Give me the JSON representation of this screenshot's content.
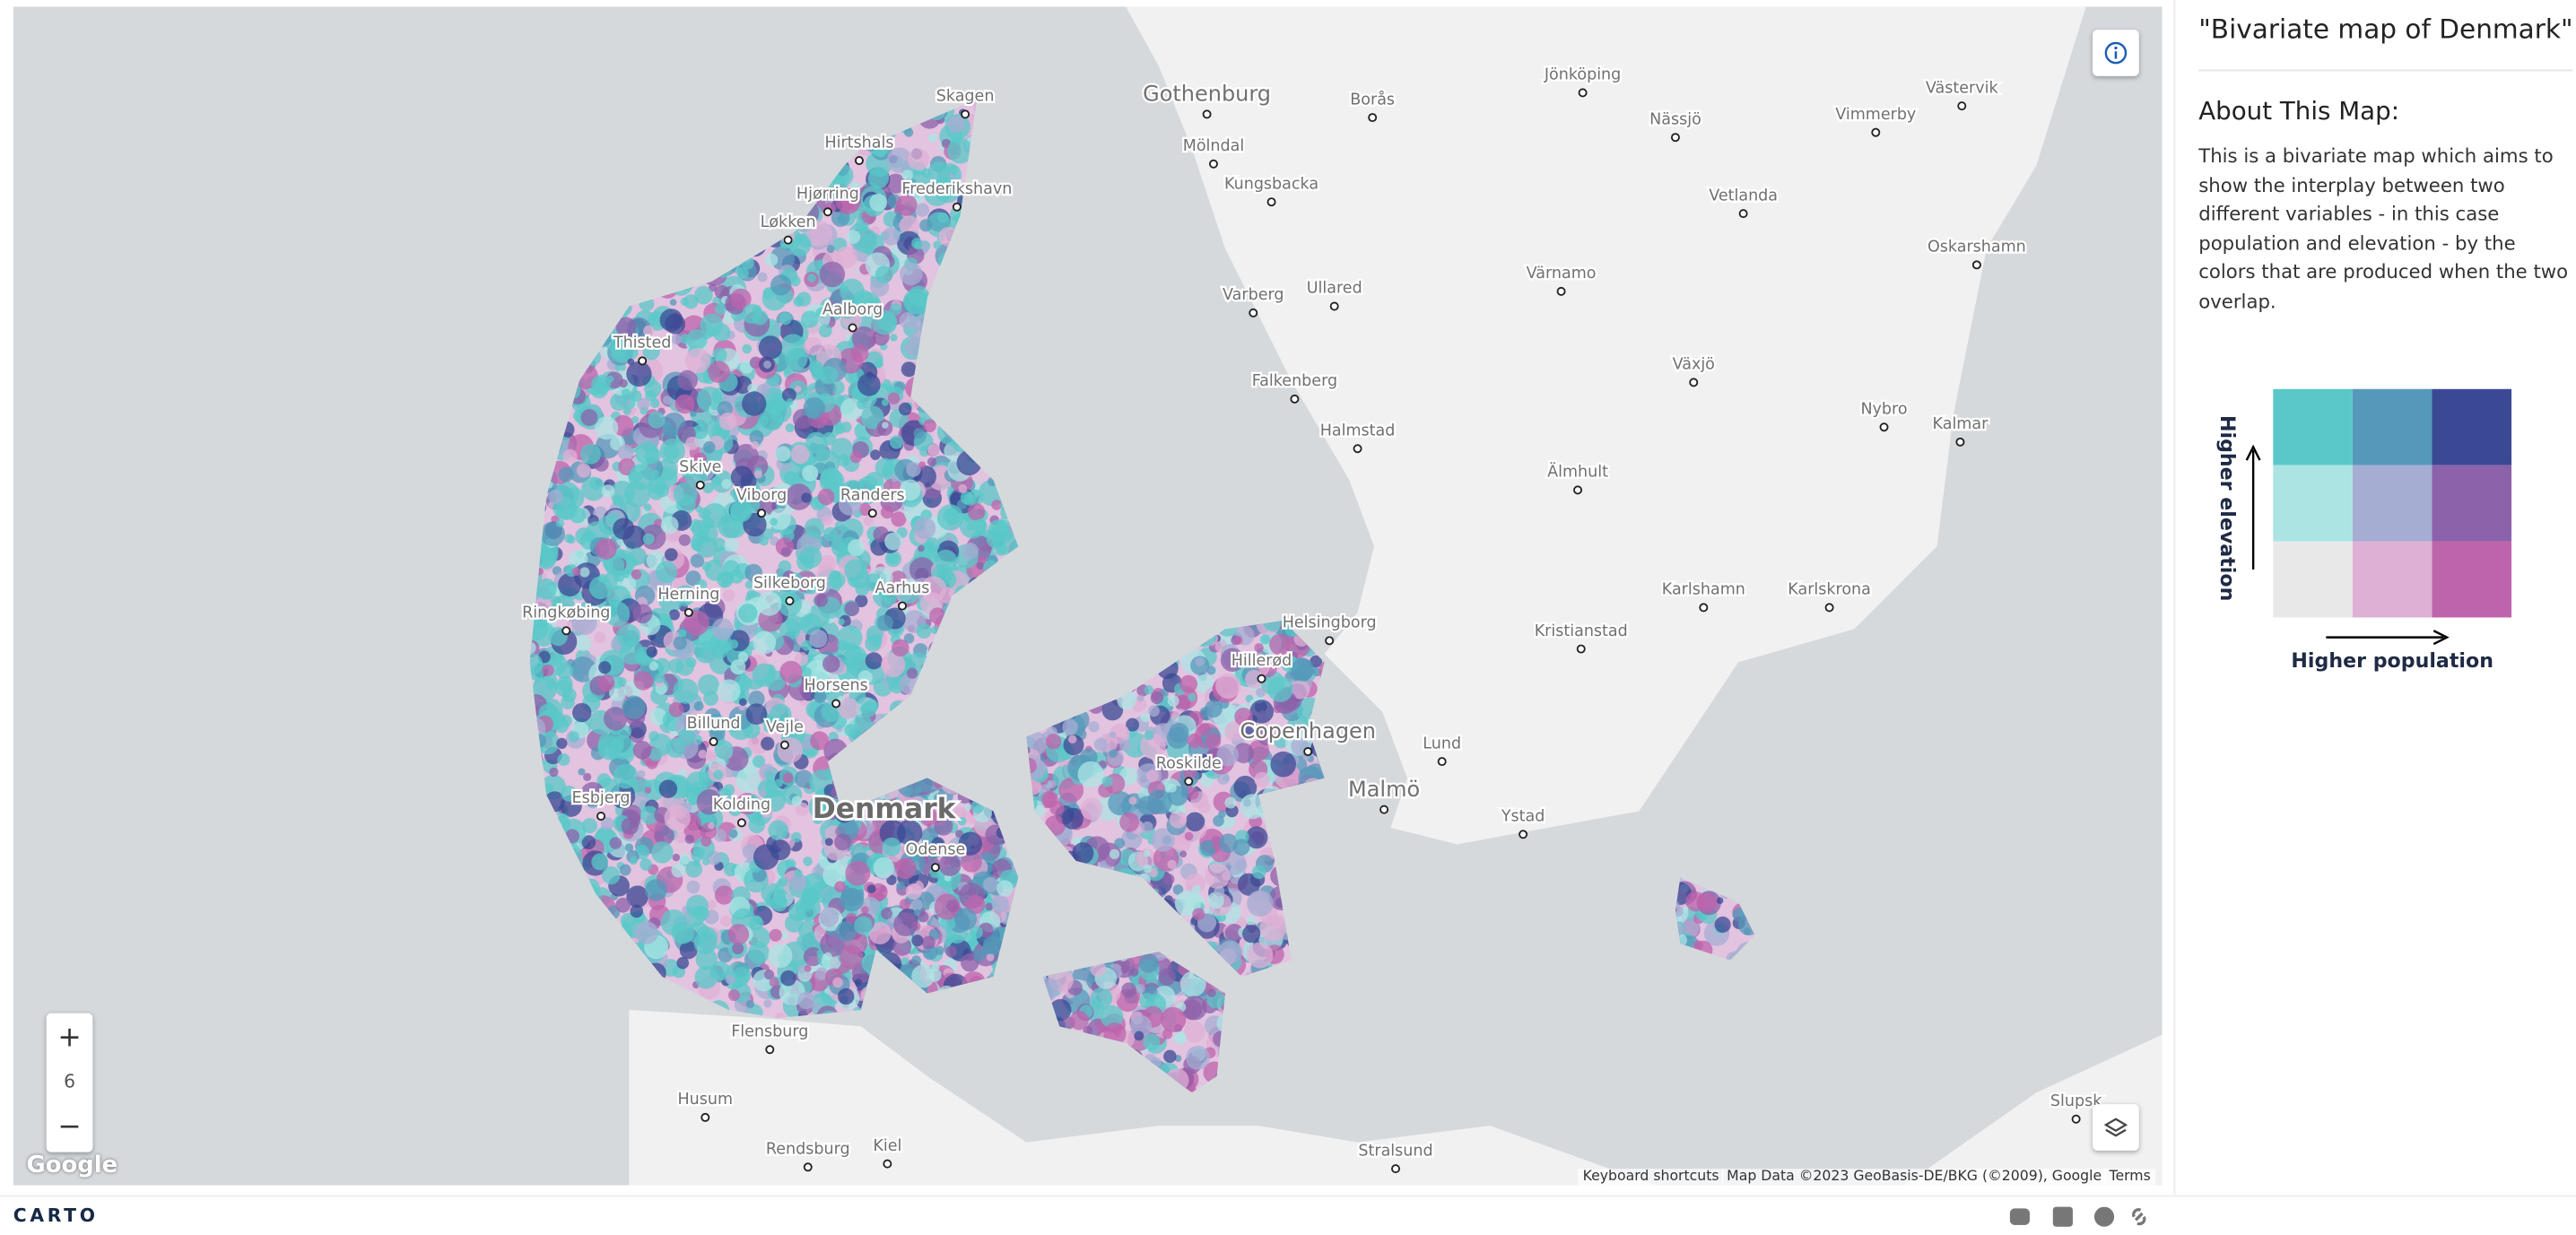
{
  "sidebar": {
    "title": "\"Bivariate map of Denmark\"",
    "about_heading": "About This Map:",
    "description": "This is a bivariate map which aims to show the interplay between two different variables - in this case population and elevation - by the colors that are produced when the two overlap."
  },
  "legend": {
    "y_label": "Higher elevation",
    "x_label": "Higher population"
  },
  "map": {
    "country_label": "Denmark",
    "zoom_in": "+",
    "zoom_level": "6",
    "zoom_out": "−",
    "logo": "Google",
    "attribution": [
      "Keyboard shortcuts",
      "Map Data ©2023 GeoBasis-DE/BKG (©2009), Google",
      "Terms"
    ],
    "places": [
      "Skagen",
      "Hirtshals",
      "Hjørring",
      "Frederikshavn",
      "Løkken",
      "Aalborg",
      "Thisted",
      "Skive",
      "Viborg",
      "Randers",
      "Silkeborg",
      "Aarhus",
      "Herning",
      "Ringkøbing",
      "Horsens",
      "Billund",
      "Vejle",
      "Esbjerg",
      "Kolding",
      "Odense",
      "Flensburg",
      "Husum",
      "Rendsburg",
      "Kiel",
      "Stralsund",
      "Roskilde",
      "Hillerød",
      "Helsingborg",
      "Copenhagen",
      "Lund",
      "Malmö",
      "Ystad",
      "Kristianstad",
      "Karlshamn",
      "Karlskrona",
      "Gothenburg",
      "Mölndal",
      "Kungsbacka",
      "Borås",
      "Jönköping",
      "Nässjö",
      "Vimmerby",
      "Västervik",
      "Vetlanda",
      "Oskarshamn",
      "Värnamo",
      "Växjö",
      "Varberg",
      "Ullared",
      "Falkenberg",
      "Halmstad",
      "Älmhult",
      "Nybro",
      "Kalmar",
      "Slupsk"
    ]
  },
  "footer": {
    "brand": "CARTO"
  }
}
